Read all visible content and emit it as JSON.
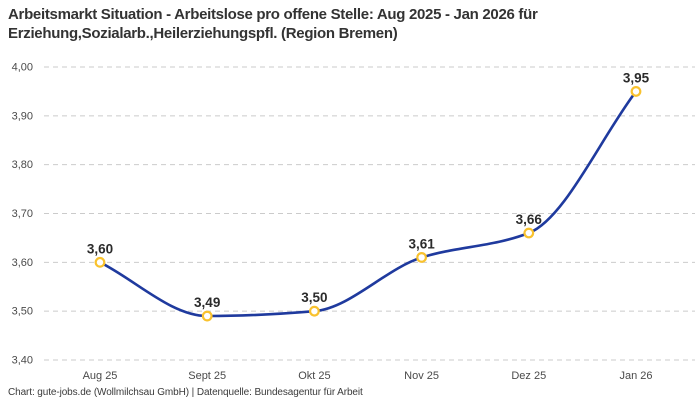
{
  "title": {
    "line1": "Arbeitsmarkt Situation - Arbeitslose pro offene Stelle: Aug 2025 - Jan 2026 für",
    "line2": "Erziehung,Sozialarb.,Heilerziehungspfl. (Region Bremen)"
  },
  "footer": {
    "text": "Chart: gute-jobs.de (Wollmilchsau GmbH) | Datenquelle: Bundesagentur für Arbeit"
  },
  "chart_data": {
    "type": "line",
    "title": "Arbeitsmarkt Situation - Arbeitslose pro offene Stelle: Aug 2025 - Jan 2026 für Erziehung,Sozialarb.,Heilerziehungspfl. (Region Bremen)",
    "categories": [
      "Aug 25",
      "Sept 25",
      "Okt 25",
      "Nov 25",
      "Dez 25",
      "Jan 26"
    ],
    "values": [
      3.6,
      3.49,
      3.5,
      3.61,
      3.66,
      3.95
    ],
    "point_labels": [
      "3,60",
      "3,49",
      "3,50",
      "3,61",
      "3,66",
      "3,95"
    ],
    "ytick_labels": [
      "3,40",
      "3,50",
      "3,60",
      "3,70",
      "3,80",
      "3,90",
      "4,00"
    ],
    "ylim": [
      3.4,
      4.0
    ],
    "ytick_step": 0.1,
    "xlabel": "",
    "ylabel": "",
    "grid": "horizontal-dashed",
    "legend": "none",
    "marker_style": "open-circle",
    "curve": "smooth-monotone",
    "colors": {
      "line": "#1f3a9e",
      "marker_stroke": "#f9c22e",
      "marker_fill": "#ffffff",
      "grid": "#cbcbcb",
      "axis_text": "#4a4a4a",
      "point_label_text": "#2b2b2b",
      "background": "#ffffff"
    }
  }
}
